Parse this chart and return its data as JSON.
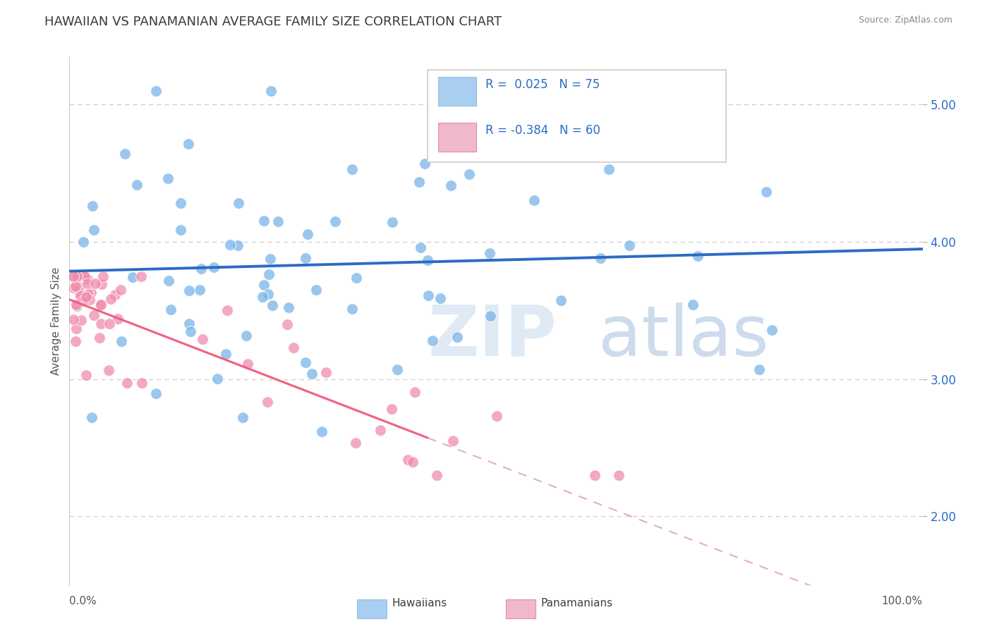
{
  "title": "HAWAIIAN VS PANAMANIAN AVERAGE FAMILY SIZE CORRELATION CHART",
  "source_text": "Source: ZipAtlas.com",
  "ylabel": "Average Family Size",
  "yticks": [
    2.0,
    3.0,
    4.0,
    5.0
  ],
  "xlim": [
    0.0,
    1.0
  ],
  "ylim": [
    1.5,
    5.35
  ],
  "hawaiian_color": "#7ab4e8",
  "panamanian_color": "#f08cac",
  "hawaiian_legend_color": "#a8cef0",
  "panamanian_legend_color": "#f0b8cc",
  "hawaiian_R": 0.025,
  "hawaiian_N": 75,
  "panamanian_R": -0.384,
  "panamanian_N": 60,
  "trend_blue": "#2a6cc4",
  "trend_pink_solid": "#f06080",
  "trend_pink_dash": "#e0b0bc",
  "title_fontsize": 13,
  "axis_label_fontsize": 11,
  "tick_fontsize": 11,
  "source_fontsize": 9,
  "legend_fontsize": 12,
  "background_color": "#ffffff",
  "grid_color": "#cccccc",
  "watermark_zip_color": "#dce8f4",
  "watermark_atlas_color": "#c8d8ec"
}
